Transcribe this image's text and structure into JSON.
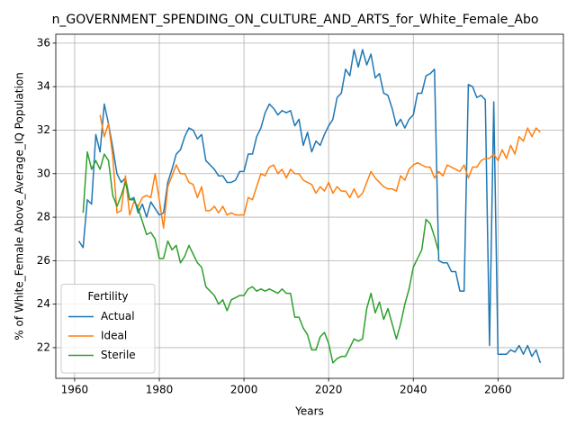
{
  "chart_data": {
    "type": "line",
    "title": "n_GOVERNMENT_SPENDING_ON_CULTURE_AND_ARTS_for_White_Female_Abo",
    "x_label": "Years",
    "y_label": "% of White_Female Above_Average_IQ Population",
    "legend_title": "Fertility",
    "legend_position": "lower left",
    "grid": true,
    "xlim": [
      1955.55,
      2075.45
    ],
    "ylim": [
      20.59,
      36.41
    ],
    "xticks": [
      1960,
      1980,
      2000,
      2020,
      2040,
      2060
    ],
    "yticks": [
      22,
      24,
      26,
      28,
      30,
      32,
      34,
      36
    ],
    "x": [
      1961,
      1962,
      1963,
      1964,
      1965,
      1966,
      1967,
      1968,
      1969,
      1970,
      1971,
      1972,
      1973,
      1974,
      1975,
      1976,
      1977,
      1978,
      1979,
      1980,
      1981,
      1982,
      1983,
      1984,
      1985,
      1986,
      1987,
      1988,
      1989,
      1990,
      1991,
      1992,
      1993,
      1994,
      1995,
      1996,
      1997,
      1998,
      1999,
      2000,
      2001,
      2002,
      2003,
      2004,
      2005,
      2006,
      2007,
      2008,
      2009,
      2010,
      2011,
      2012,
      2013,
      2014,
      2015,
      2016,
      2017,
      2018,
      2019,
      2020,
      2021,
      2022,
      2023,
      2024,
      2025,
      2026,
      2027,
      2028,
      2029,
      2030,
      2031,
      2032,
      2033,
      2034,
      2035,
      2036,
      2037,
      2038,
      2039,
      2040,
      2041,
      2042,
      2043,
      2044,
      2045,
      2046,
      2047,
      2048,
      2049,
      2050,
      2051,
      2052,
      2053,
      2054,
      2055,
      2056,
      2057,
      2058,
      2059,
      2060,
      2061,
      2062,
      2063,
      2064,
      2065,
      2066,
      2067,
      2068,
      2069,
      2070
    ],
    "series": [
      {
        "name": "Actual",
        "color": "#1f77b4",
        "values": [
          26.9,
          26.6,
          28.8,
          28.6,
          31.8,
          31.0,
          33.2,
          32.3,
          31.2,
          30.0,
          29.6,
          29.8,
          28.8,
          28.9,
          28.2,
          28.6,
          28.0,
          28.7,
          28.4,
          28.1,
          28.2,
          29.6,
          30.2,
          30.9,
          31.1,
          31.7,
          32.1,
          32.0,
          31.6,
          31.8,
          30.6,
          30.4,
          30.2,
          29.9,
          29.9,
          29.6,
          29.6,
          29.7,
          30.1,
          30.1,
          30.9,
          30.9,
          31.7,
          32.1,
          32.8,
          33.2,
          33.0,
          32.7,
          32.9,
          32.8,
          32.9,
          32.2,
          32.5,
          31.3,
          31.9,
          31.0,
          31.5,
          31.3,
          31.8,
          32.2,
          32.5,
          33.5,
          33.7,
          34.8,
          34.5,
          35.7,
          34.9,
          35.7,
          35.0,
          35.5,
          34.4,
          34.6,
          33.7,
          33.6,
          33.0,
          32.2,
          32.5,
          32.1,
          32.5,
          32.7,
          33.7,
          33.7,
          34.5,
          34.6,
          34.8,
          26.0,
          25.9,
          25.9,
          25.5,
          25.5,
          24.6,
          24.6,
          34.1,
          34.0,
          33.5,
          33.6,
          33.4,
          22.1,
          33.3,
          21.7,
          21.7,
          21.7,
          21.9,
          21.8,
          22.1,
          21.7,
          22.1,
          21.6,
          21.9,
          21.3
        ]
      },
      {
        "name": "Ideal",
        "color": "#ff7f0e",
        "values": [
          null,
          null,
          null,
          null,
          null,
          32.7,
          31.7,
          32.3,
          30.8,
          28.2,
          28.3,
          29.9,
          28.1,
          28.7,
          28.5,
          28.9,
          29.0,
          28.9,
          30.0,
          28.8,
          27.5,
          29.4,
          29.9,
          30.4,
          30.0,
          30.0,
          29.6,
          29.5,
          28.9,
          29.4,
          28.3,
          28.3,
          28.5,
          28.2,
          28.5,
          28.1,
          28.2,
          28.1,
          28.1,
          28.1,
          28.9,
          28.8,
          29.4,
          30.0,
          29.9,
          30.3,
          30.4,
          30.0,
          30.2,
          29.8,
          30.2,
          30.0,
          30.0,
          29.7,
          29.6,
          29.5,
          29.1,
          29.4,
          29.2,
          29.6,
          29.1,
          29.4,
          29.2,
          29.2,
          28.9,
          29.3,
          28.9,
          29.1,
          29.6,
          30.1,
          29.8,
          29.6,
          29.4,
          29.3,
          29.3,
          29.2,
          29.9,
          29.7,
          30.2,
          30.4,
          30.5,
          30.4,
          30.3,
          30.3,
          29.8,
          30.1,
          29.9,
          30.4,
          30.3,
          30.2,
          30.1,
          30.4,
          29.8,
          30.3,
          30.3,
          30.6,
          30.7,
          30.7,
          30.9,
          30.6,
          31.1,
          30.7,
          31.3,
          30.9,
          31.7,
          31.5,
          32.1,
          31.7,
          32.1,
          31.9
        ]
      },
      {
        "name": "Sterile",
        "color": "#2ca02c",
        "values": [
          null,
          28.2,
          31.0,
          30.2,
          30.6,
          30.2,
          30.9,
          30.6,
          29.0,
          28.5,
          29.0,
          29.6,
          28.8,
          28.8,
          28.4,
          27.8,
          27.2,
          27.3,
          27.0,
          26.1,
          26.1,
          26.9,
          26.5,
          26.7,
          25.9,
          26.2,
          26.7,
          26.3,
          25.9,
          25.7,
          24.8,
          24.6,
          24.4,
          24.0,
          24.2,
          23.7,
          24.2,
          24.3,
          24.4,
          24.4,
          24.7,
          24.8,
          24.6,
          24.7,
          24.6,
          24.7,
          24.6,
          24.5,
          24.7,
          24.5,
          24.5,
          23.4,
          23.4,
          22.9,
          22.6,
          21.9,
          21.9,
          22.5,
          22.7,
          22.2,
          21.3,
          21.5,
          21.6,
          21.6,
          22.0,
          22.4,
          22.3,
          22.4,
          23.8,
          24.5,
          23.6,
          24.1,
          23.3,
          23.8,
          23.1,
          22.4,
          23.1,
          24.0,
          24.7,
          25.7,
          26.1,
          26.5,
          27.9,
          27.7,
          27.1,
          26.4,
          null,
          null,
          null,
          null,
          null,
          null,
          null,
          null,
          null,
          null,
          null,
          null,
          null,
          null,
          null,
          null,
          null,
          null,
          null,
          null,
          null,
          null,
          null,
          null
        ]
      }
    ]
  }
}
